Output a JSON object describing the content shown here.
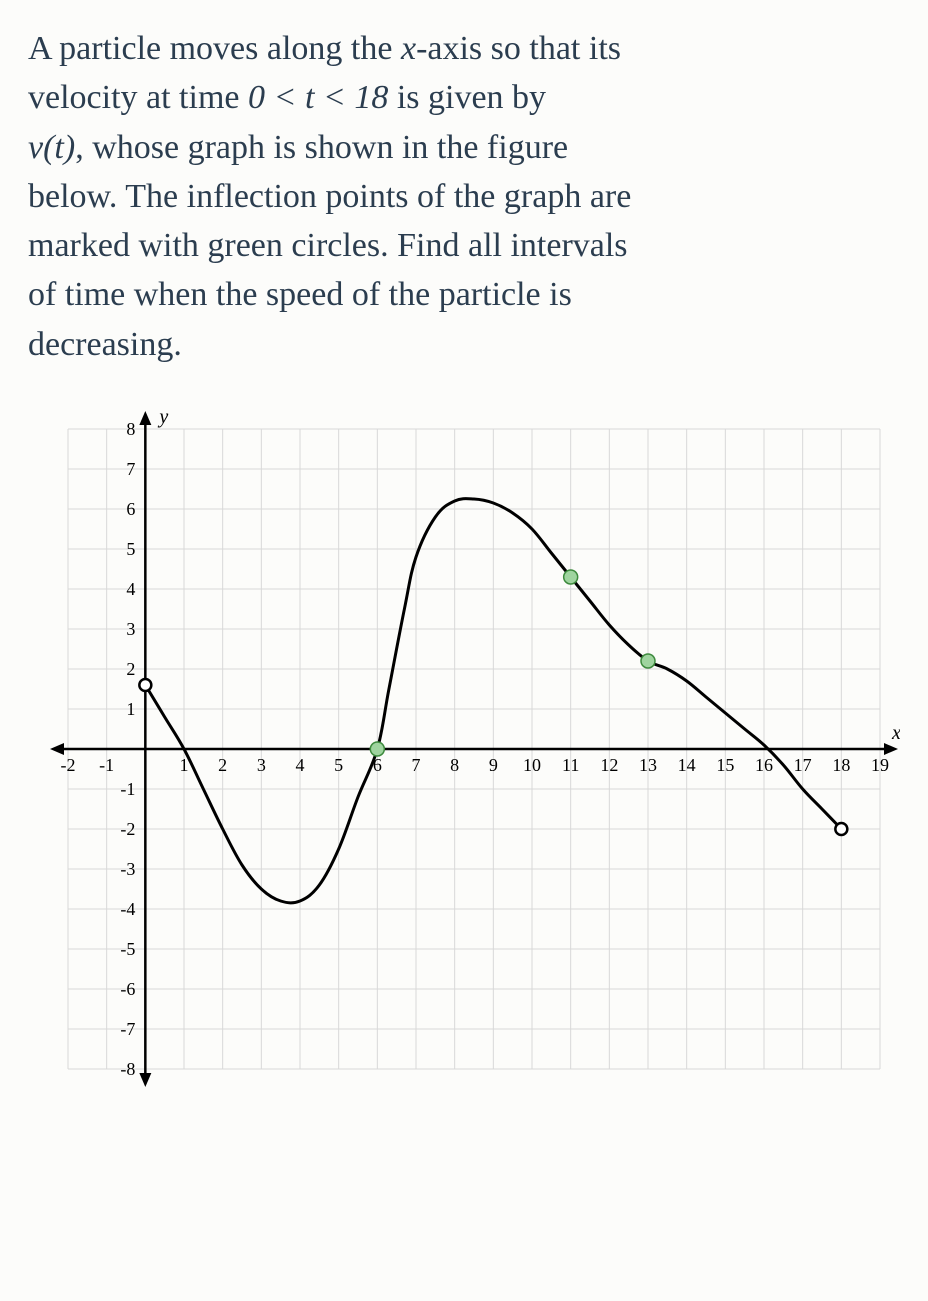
{
  "problem": {
    "line1_a": "A particle moves along the ",
    "line1_x": "x",
    "line1_b": "-axis so that its",
    "line2_a": "velocity at time ",
    "line2_eq": "0 < t < 18",
    "line2_b": " is given by",
    "line3_v": "v(t)",
    "line3_b": ", whose graph is shown in the figure",
    "line4": "below. The inflection points of the graph are",
    "line5": "marked with green circles. Find all intervals",
    "line6": "of time when the speed of the particle is",
    "line7": "decreasing."
  },
  "chart": {
    "type": "line",
    "xlim": [
      -2,
      19
    ],
    "ylim": [
      -8,
      8
    ],
    "xlabel": "x",
    "ylabel": "y",
    "x_ticks_neg": [
      -2,
      -1
    ],
    "x_ticks_pos": [
      1,
      2,
      3,
      4,
      5,
      6,
      7,
      8,
      9,
      10,
      11,
      12,
      13,
      14,
      15,
      16,
      17,
      18,
      19
    ],
    "y_ticks_pos": [
      1,
      2,
      3,
      4,
      5,
      6,
      7,
      8
    ],
    "y_ticks_neg": [
      -1,
      -2,
      -3,
      -4,
      -5,
      -6,
      -7,
      -8
    ],
    "grid_color": "#d8d8d8",
    "bg_color": "#fcfcfa",
    "curve_color": "#000000",
    "curve_width": 3,
    "inflection_fill": "#9fd49f",
    "inflection_stroke": "#3d8a3d",
    "inflection_radius": 7,
    "open_dot_fill": "#ffffff",
    "open_dot_stroke": "#000000",
    "open_dot_radius": 6,
    "curve_points": [
      [
        0,
        1.6
      ],
      [
        0.5,
        0.8
      ],
      [
        1,
        0
      ],
      [
        1.5,
        -1.0
      ],
      [
        2,
        -2.0
      ],
      [
        2.5,
        -2.9
      ],
      [
        3,
        -3.5
      ],
      [
        3.5,
        -3.8
      ],
      [
        4,
        -3.8
      ],
      [
        4.5,
        -3.4
      ],
      [
        5,
        -2.5
      ],
      [
        5.5,
        -1.2
      ],
      [
        6,
        0
      ],
      [
        6.3,
        1.5
      ],
      [
        6.7,
        3.5
      ],
      [
        7,
        4.8
      ],
      [
        7.5,
        5.8
      ],
      [
        8,
        6.2
      ],
      [
        8.5,
        6.25
      ],
      [
        9,
        6.15
      ],
      [
        9.5,
        5.9
      ],
      [
        10,
        5.5
      ],
      [
        10.5,
        4.9
      ],
      [
        11,
        4.3
      ],
      [
        11.5,
        3.7
      ],
      [
        12,
        3.1
      ],
      [
        12.5,
        2.6
      ],
      [
        13,
        2.2
      ],
      [
        13.5,
        2.0
      ],
      [
        14,
        1.7
      ],
      [
        14.5,
        1.3
      ],
      [
        15,
        0.9
      ],
      [
        15.5,
        0.5
      ],
      [
        16,
        0.1
      ],
      [
        16.5,
        -0.4
      ],
      [
        17,
        -1.0
      ],
      [
        17.5,
        -1.5
      ],
      [
        18,
        -2.0
      ]
    ],
    "inflection_points": [
      [
        6,
        0
      ],
      [
        11,
        4.3
      ],
      [
        13,
        2.2
      ]
    ],
    "open_points": [
      [
        0,
        1.6
      ],
      [
        18,
        -2.0
      ]
    ]
  }
}
